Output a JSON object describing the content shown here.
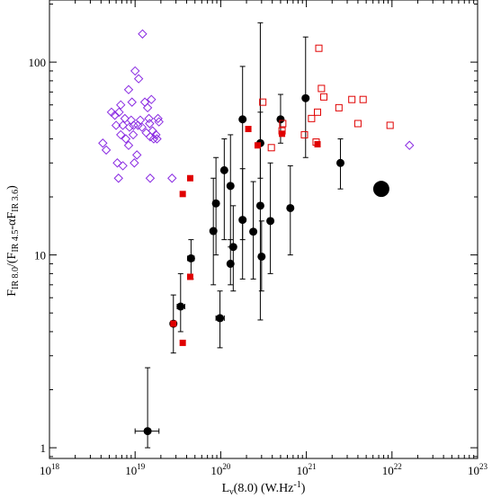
{
  "chart_data": {
    "type": "scatter",
    "title": "",
    "xlabel": "Lν(8.0) (W.Hz⁻¹)",
    "xlabel_parts": {
      "main": "L",
      "sub": "ν",
      "rest": "(8.0) (W.Hz",
      "sup": "-1",
      "end": ")"
    },
    "ylabel_parts": {
      "p1": "F",
      "s1": "IR 8.0",
      "p2": "/(F",
      "s2": "IR 4.5",
      "p3": "-αF",
      "s3": "IR 3.6",
      "p4": ")"
    },
    "xscale": "log",
    "yscale": "log",
    "xlim": [
      1e+18,
      1e+23
    ],
    "ylim": [
      0.88,
      210
    ],
    "grid": false,
    "legend": "none",
    "x_ticks": [
      {
        "value": 1e+18,
        "base": "10",
        "exp": "18"
      },
      {
        "value": 1e+19,
        "base": "10",
        "exp": "19"
      },
      {
        "value": 1e+20,
        "base": "10",
        "exp": "20"
      },
      {
        "value": 1e+21,
        "base": "10",
        "exp": "21"
      },
      {
        "value": 1e+22,
        "base": "10",
        "exp": "22"
      },
      {
        "value": 1e+23,
        "base": "10",
        "exp": "23"
      }
    ],
    "y_ticks": [
      {
        "value": 1,
        "label": "1"
      },
      {
        "value": 10,
        "label": "10"
      },
      {
        "value": 100,
        "label": "100"
      }
    ],
    "colors": {
      "black": "#000000",
      "red": "#e00000",
      "purple": "#8a2be2"
    },
    "series": [
      {
        "marker": "filled-circle",
        "color": "#000000",
        "points": [
          {
            "x": 1.4e+19,
            "y": 1.22,
            "ylo": 1.0,
            "yhi": 2.6,
            "xlo": 1e+19,
            "xhi": 1.9e+19
          },
          {
            "x": 2.8e+19,
            "y": 4.4,
            "ylo": 3.1,
            "yhi": 6.2
          },
          {
            "x": 3.4e+19,
            "y": 5.4,
            "ylo": 4.0,
            "yhi": 8.0,
            "xlo": 3.1e+19,
            "xhi": 3.8e+19
          },
          {
            "x": 4.5e+19,
            "y": 9.6,
            "ylo": 7.5,
            "yhi": 12,
            "xlo": 4.1e+19,
            "xhi": 4.9e+19
          },
          {
            "x": 9.8e+19,
            "y": 4.7,
            "ylo": 3.3,
            "yhi": 6.5,
            "xlo": 8.8e+19,
            "xhi": 1.1e+20
          },
          {
            "x": 8.2e+19,
            "y": 13.3,
            "ylo": 7.0,
            "yhi": 25
          },
          {
            "x": 8.8e+19,
            "y": 18.5,
            "ylo": 10,
            "yhi": 32
          },
          {
            "x": 1.1e+20,
            "y": 27.5,
            "ylo": 12,
            "yhi": 40
          },
          {
            "x": 1.3e+20,
            "y": 22.8,
            "ylo": 11,
            "yhi": 42
          },
          {
            "x": 1.3e+20,
            "y": 9.0,
            "ylo": 7.0,
            "yhi": 12
          },
          {
            "x": 1.4e+20,
            "y": 11.0,
            "ylo": 6.5,
            "yhi": 18
          },
          {
            "x": 1.8e+20,
            "y": 50.5,
            "ylo": 12,
            "yhi": 95
          },
          {
            "x": 1.8e+20,
            "y": 15.2,
            "ylo": 7.5,
            "yhi": 28
          },
          {
            "x": 2.4e+20,
            "y": 13.2,
            "ylo": 7.5,
            "yhi": 24
          },
          {
            "x": 2.9e+20,
            "y": 38.0,
            "ylo": 25,
            "yhi": 55
          },
          {
            "x": 2.9e+20,
            "y": 18.0,
            "ylo": 4.6,
            "yhi": 160
          },
          {
            "x": 3e+20,
            "y": 9.8,
            "ylo": 6.5,
            "yhi": 15
          },
          {
            "x": 3.8e+20,
            "y": 15.0,
            "ylo": 8.0,
            "yhi": 30
          },
          {
            "x": 5e+20,
            "y": 50.5,
            "ylo": 38,
            "yhi": 68
          },
          {
            "x": 6.5e+20,
            "y": 17.5,
            "ylo": 10,
            "yhi": 29
          },
          {
            "x": 9.8e+20,
            "y": 65.0,
            "ylo": 32,
            "yhi": 135
          },
          {
            "x": 2.5e+21,
            "y": 30.0,
            "ylo": 22,
            "yhi": 40
          }
        ]
      },
      {
        "marker": "large-filled-circle",
        "color": "#000000",
        "points": [
          {
            "x": 7.5e+21,
            "y": 22.0
          }
        ]
      },
      {
        "marker": "filled-square",
        "color": "#e00000",
        "points": [
          {
            "x": 2.8e+19,
            "y": 4.4
          },
          {
            "x": 3.6e+19,
            "y": 3.5
          },
          {
            "x": 3.6e+19,
            "y": 20.7
          },
          {
            "x": 4.4e+19,
            "y": 7.7
          },
          {
            "x": 4.4e+19,
            "y": 25.0
          },
          {
            "x": 2.1e+20,
            "y": 45.0
          },
          {
            "x": 2.7e+20,
            "y": 37.0
          },
          {
            "x": 5.2e+20,
            "y": 42.5
          },
          {
            "x": 1.35e+21,
            "y": 37.5
          }
        ]
      },
      {
        "marker": "open-square",
        "color": "#e00000",
        "points": [
          {
            "x": 3.1e+20,
            "y": 62
          },
          {
            "x": 3.9e+20,
            "y": 36
          },
          {
            "x": 5.2e+20,
            "y": 44
          },
          {
            "x": 5.3e+20,
            "y": 48
          },
          {
            "x": 9.5e+20,
            "y": 42
          },
          {
            "x": 1.15e+21,
            "y": 51
          },
          {
            "x": 1.3e+21,
            "y": 38.5
          },
          {
            "x": 1.35e+21,
            "y": 55
          },
          {
            "x": 1.4e+21,
            "y": 118
          },
          {
            "x": 1.5e+21,
            "y": 73
          },
          {
            "x": 1.6e+21,
            "y": 66
          },
          {
            "x": 2.4e+21,
            "y": 58
          },
          {
            "x": 3.4e+21,
            "y": 64
          },
          {
            "x": 4e+21,
            "y": 48
          },
          {
            "x": 4.6e+21,
            "y": 64
          },
          {
            "x": 9.5e+21,
            "y": 47
          }
        ]
      },
      {
        "marker": "open-diamond",
        "color": "#8a2be2",
        "points": [
          {
            "x": 4.2e+18,
            "y": 38
          },
          {
            "x": 4.6e+18,
            "y": 35
          },
          {
            "x": 5.3e+18,
            "y": 55
          },
          {
            "x": 5.8e+18,
            "y": 53
          },
          {
            "x": 6e+18,
            "y": 47
          },
          {
            "x": 6.2e+18,
            "y": 30
          },
          {
            "x": 6.4e+18,
            "y": 25
          },
          {
            "x": 6.5e+18,
            "y": 55
          },
          {
            "x": 6.8e+18,
            "y": 60
          },
          {
            "x": 6.8e+18,
            "y": 42
          },
          {
            "x": 7.2e+18,
            "y": 47
          },
          {
            "x": 7.2e+18,
            "y": 29
          },
          {
            "x": 7.6e+18,
            "y": 51
          },
          {
            "x": 7.8e+18,
            "y": 40
          },
          {
            "x": 8.4e+18,
            "y": 72
          },
          {
            "x": 8.4e+18,
            "y": 37
          },
          {
            "x": 8.6e+18,
            "y": 46
          },
          {
            "x": 9e+18,
            "y": 50
          },
          {
            "x": 9.2e+18,
            "y": 62
          },
          {
            "x": 9.5e+18,
            "y": 42
          },
          {
            "x": 9.6e+18,
            "y": 47
          },
          {
            "x": 9.8e+18,
            "y": 30
          },
          {
            "x": 1e+19,
            "y": 90
          },
          {
            "x": 1.05e+19,
            "y": 33
          },
          {
            "x": 1.08e+19,
            "y": 47
          },
          {
            "x": 1.1e+19,
            "y": 82
          },
          {
            "x": 1.15e+19,
            "y": 50
          },
          {
            "x": 1.2e+19,
            "y": 46
          },
          {
            "x": 1.22e+19,
            "y": 140
          },
          {
            "x": 1.3e+19,
            "y": 62
          },
          {
            "x": 1.35e+19,
            "y": 43
          },
          {
            "x": 1.4e+19,
            "y": 58
          },
          {
            "x": 1.45e+19,
            "y": 51
          },
          {
            "x": 1.48e+19,
            "y": 48
          },
          {
            "x": 1.5e+19,
            "y": 41
          },
          {
            "x": 1.55e+19,
            "y": 64
          },
          {
            "x": 1.6e+19,
            "y": 44
          },
          {
            "x": 1.65e+19,
            "y": 40
          },
          {
            "x": 1.75e+19,
            "y": 42
          },
          {
            "x": 1.8e+19,
            "y": 40
          },
          {
            "x": 1.85e+19,
            "y": 51
          },
          {
            "x": 1.9e+19,
            "y": 49
          },
          {
            "x": 1.5e+19,
            "y": 25
          },
          {
            "x": 2.7e+19,
            "y": 25
          },
          {
            "x": 1.6e+22,
            "y": 37
          }
        ]
      }
    ]
  }
}
